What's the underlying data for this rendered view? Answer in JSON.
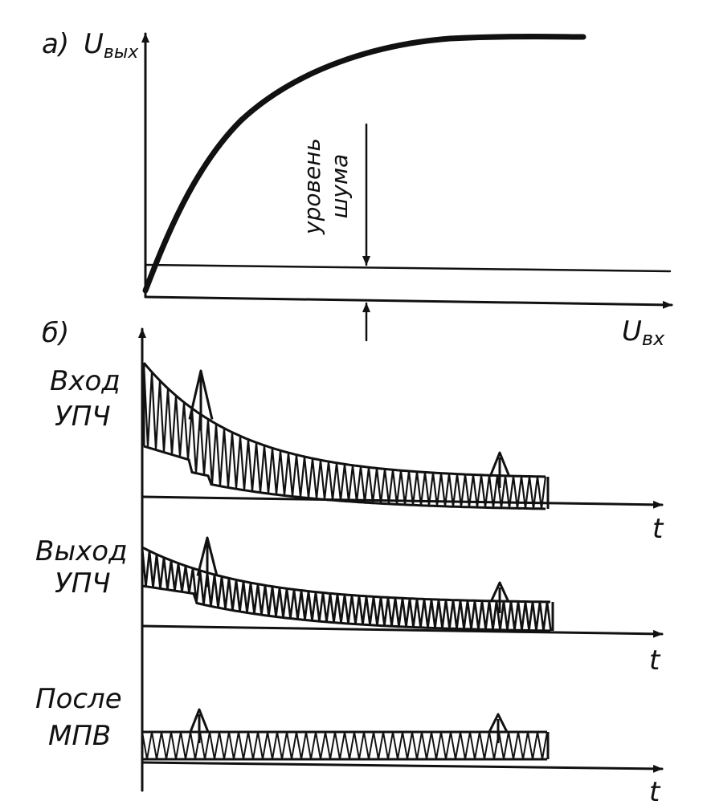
{
  "panel_a": {
    "label": "а)",
    "y_axis_label": "U",
    "y_axis_sub": "вых",
    "x_axis_label": "U",
    "x_axis_sub": "вх",
    "annotation_line1": "уровень",
    "annotation_line2": "шума"
  },
  "panel_b": {
    "label": "б)",
    "time_label": "t",
    "rows": [
      {
        "line1": "Вход",
        "line2": "УПЧ"
      },
      {
        "line1": "Выход",
        "line2": "УПЧ"
      },
      {
        "line1": "После",
        "line2": "МПВ"
      }
    ]
  }
}
